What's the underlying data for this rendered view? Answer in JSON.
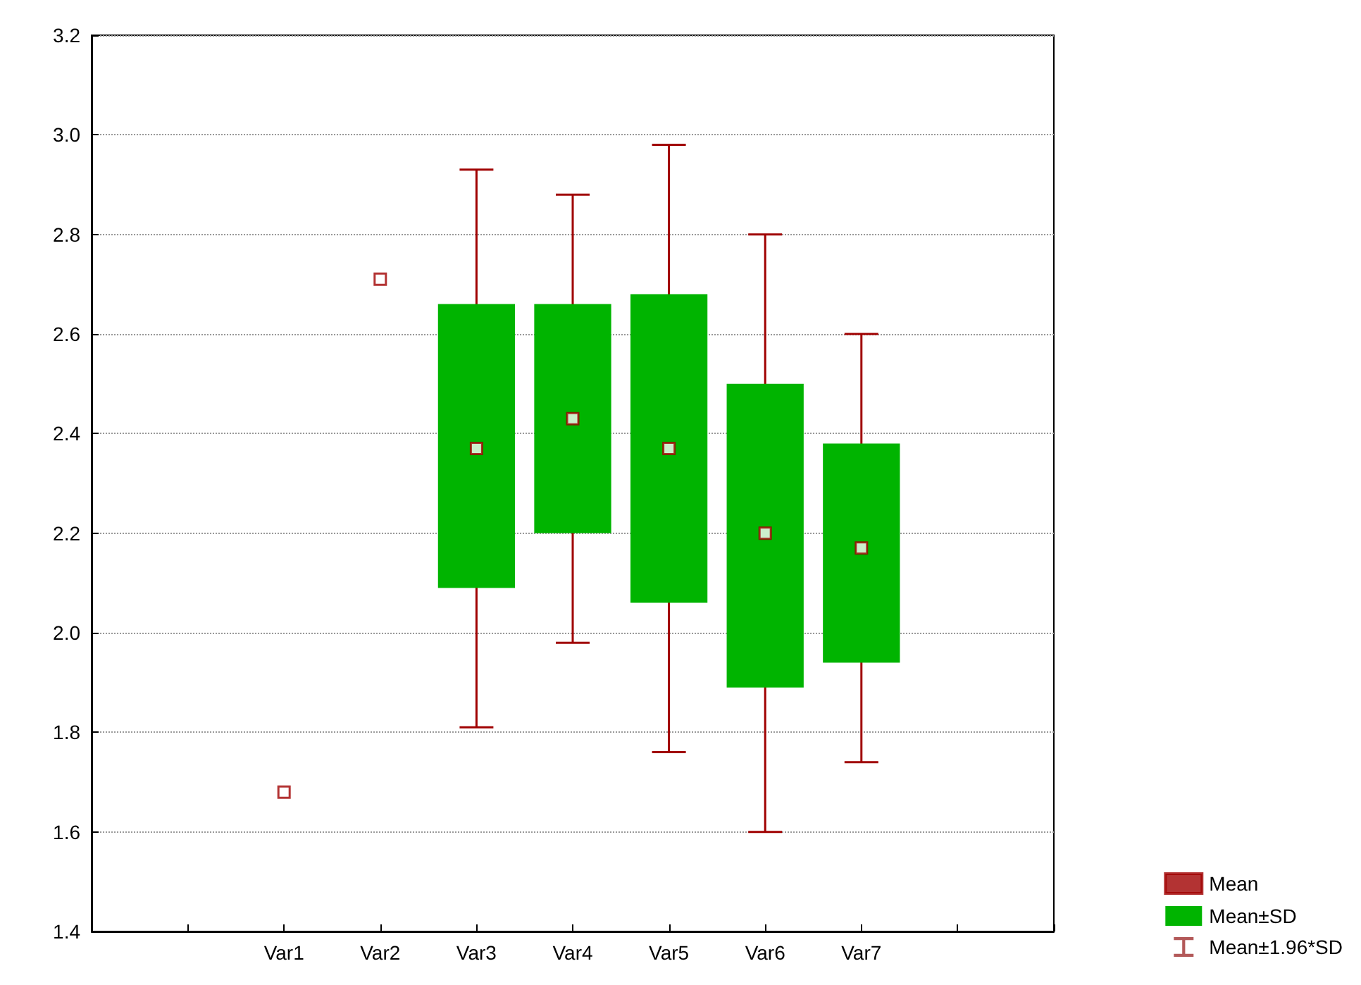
{
  "chart_data": {
    "type": "scatter",
    "categories": [
      null,
      null,
      "Var1",
      "Var2",
      "Var3",
      "Var4",
      "Var5",
      "Var6",
      "Var7",
      null,
      null
    ],
    "ylim": [
      1.4,
      3.2
    ],
    "yticks": [
      1.4,
      1.6,
      1.8,
      {
        "value": 2,
        "label": "2.0"
      },
      2.2,
      2.4,
      2.6,
      2.8,
      {
        "value": 3,
        "label": "3.0"
      },
      3.2
    ],
    "grid": "y",
    "legend": "bottom right",
    "series": [
      {
        "name": "Mean",
        "marker": "square",
        "color": "#a00000",
        "values": [
          null,
          null,
          1.68,
          2.71,
          2.37,
          2.43,
          2.37,
          2.2,
          2.17,
          null,
          null
        ],
        "errors": [
          null,
          null,
          null,
          null,
          0.56,
          0.45,
          0.61,
          0.6,
          0.43,
          null,
          null
        ]
      },
      {
        "name": "Mean±SD",
        "type": "bar",
        "color": "#00b400",
        "base": [
          null,
          null,
          null,
          null,
          2.09,
          2.2,
          2.06,
          1.89,
          1.94,
          null,
          null
        ],
        "values": [
          null,
          null,
          null,
          null,
          0.57,
          0.46,
          0.62,
          0.61,
          0.44,
          null,
          null
        ]
      },
      {
        "name": "Mean±1.96*SD",
        "type": "scatter",
        "marker": "none",
        "color": "#a03030",
        "values": [
          null,
          null,
          null,
          null,
          null,
          null,
          null,
          null,
          null,
          null,
          null
        ]
      }
    ]
  }
}
